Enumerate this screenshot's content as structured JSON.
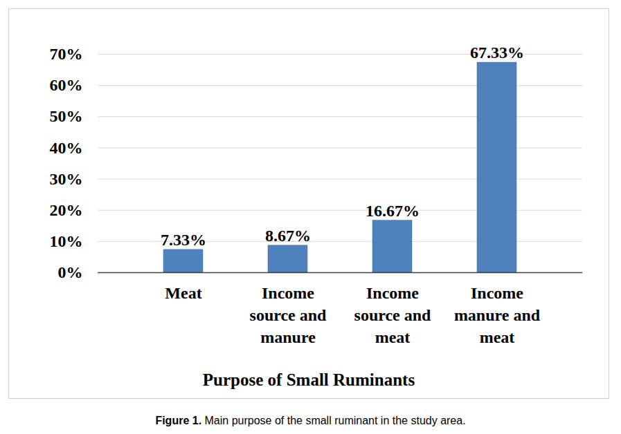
{
  "chart_data": {
    "type": "bar",
    "categories": [
      "Meat",
      "Income source and manure",
      "Income source and meat",
      "Income manure and meat"
    ],
    "values": [
      7.33,
      8.67,
      16.67,
      67.33
    ],
    "value_labels": [
      "7.33%",
      "8.67%",
      "16.67%",
      "67.33%"
    ],
    "data_labels": true,
    "color": "#4f81bd",
    "xlabel": "Purpose of Small Ruminants",
    "caption": "Figure 1. Main purpose of the small ruminant in the study area.",
    "ylim": [
      0,
      70
    ],
    "yticks": [
      {
        "value": 0,
        "label": "0%"
      },
      {
        "value": 10,
        "label": "10%"
      },
      {
        "value": 20,
        "label": "20%"
      },
      {
        "value": 30,
        "label": "30%"
      },
      {
        "value": 40,
        "label": "40%"
      },
      {
        "value": 50,
        "label": "50%"
      },
      {
        "value": 60,
        "label": "60%"
      },
      {
        "value": 70,
        "label": "70%"
      }
    ],
    "grid": true
  }
}
